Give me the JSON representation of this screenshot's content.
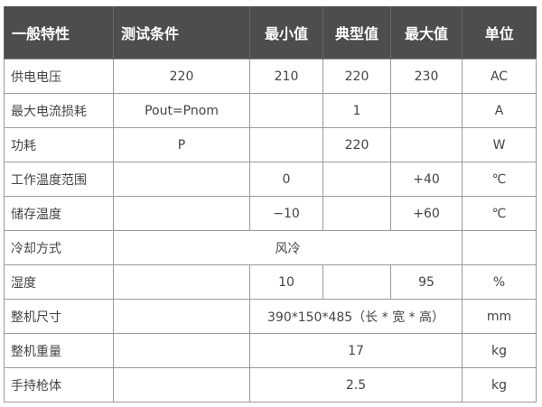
{
  "header": [
    "一般特性",
    "测试条件",
    "最小值",
    "典型值",
    "最大值",
    "单位"
  ],
  "rows": [
    {
      "name": "供电电压",
      "cond": "220",
      "min": "210",
      "typ": "220",
      "max": "230",
      "unit": "AC"
    },
    {
      "name": "最大电流损耗",
      "cond": "Pout=Pnom",
      "min": "",
      "typ": "1",
      "max": "",
      "unit": "A"
    },
    {
      "name": "功耗",
      "cond": "P",
      "min": "",
      "typ": "220",
      "max": "",
      "unit": "W"
    },
    {
      "name": "工作温度范围",
      "cond": "",
      "min": "0",
      "typ": "",
      "max": "+40",
      "unit": "℃"
    },
    {
      "name": "储存温度",
      "cond": "",
      "min": "−10",
      "typ": "",
      "max": "+60",
      "unit": "℃"
    },
    {
      "name": "冷却方式",
      "value": "风冷",
      "unit": ""
    },
    {
      "name": "湿度",
      "cond": "",
      "min": "10",
      "typ": "",
      "max": "95",
      "unit": "%"
    },
    {
      "name": "整机尺寸",
      "cond": "",
      "value": "390*150*485（长 * 宽 * 高）",
      "unit": "mm"
    },
    {
      "name": "整机重量",
      "cond": "",
      "value": "17",
      "unit": "kg"
    },
    {
      "name": "手持枪体",
      "cond": "",
      "value": "2.5",
      "unit": "kg"
    }
  ]
}
